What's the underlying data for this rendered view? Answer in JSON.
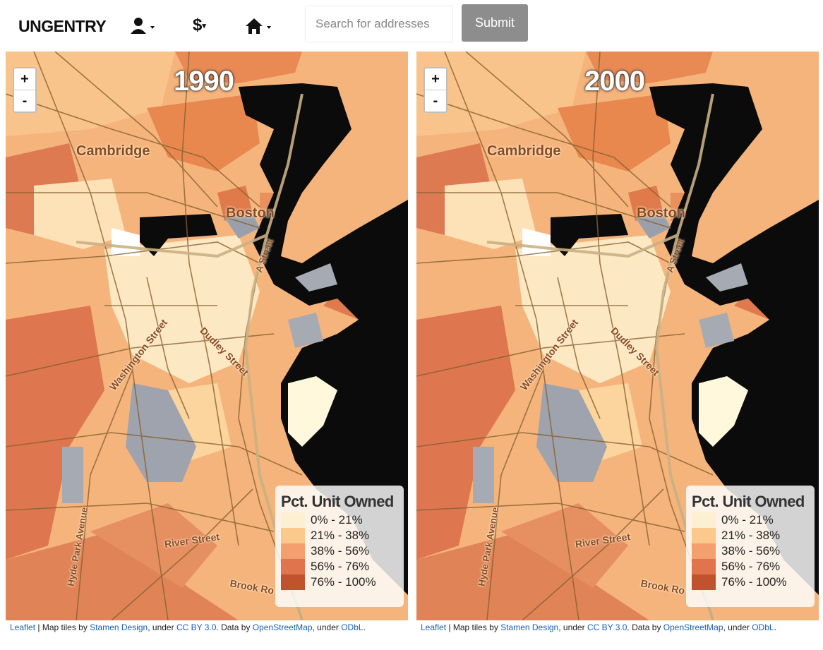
{
  "navbar": {
    "brand": "UNGENTRY",
    "dollar_menu": "$",
    "search_placeholder": "Search for addresses",
    "submit": "Submit"
  },
  "maps": [
    {
      "year": "1990",
      "zoom_in": "+",
      "zoom_out": "-",
      "labels": [
        "Cambridge",
        "Boston",
        "Washington Street",
        "Dudley Street",
        "River Street",
        "Hyde Park Avenue",
        "A Street",
        "Brook Ro"
      ],
      "legend": {
        "title": "Pct. Unit Owned",
        "items": [
          {
            "label": "0% - 21%",
            "color": "#fdf0d2"
          },
          {
            "label": "21% - 38%",
            "color": "#fbc98c"
          },
          {
            "label": "38% - 56%",
            "color": "#f4a06e"
          },
          {
            "label": "56% - 76%",
            "color": "#e0744c"
          },
          {
            "label": "76% - 100%",
            "color": "#c0532d"
          }
        ]
      },
      "attribution": [
        {
          "text": "Leaflet",
          "link": true
        },
        {
          "text": " | Map tiles by ",
          "link": false
        },
        {
          "text": "Stamen Design",
          "link": true
        },
        {
          "text": ", under ",
          "link": false
        },
        {
          "text": "CC BY 3.0",
          "link": true
        },
        {
          "text": ". Data by ",
          "link": false
        },
        {
          "text": "OpenStreetMap",
          "link": true
        },
        {
          "text": ", under ",
          "link": false
        },
        {
          "text": "ODbL",
          "link": true
        },
        {
          "text": ".",
          "link": false
        }
      ]
    },
    {
      "year": "2000",
      "zoom_in": "+",
      "zoom_out": "-",
      "labels": [
        "Cambridge",
        "Boston",
        "Washington Street",
        "Dudley Street",
        "River Street",
        "Hyde Park Avenue",
        "A Street",
        "Brook Ro"
      ],
      "legend": {
        "title": "Pct. Unit Owned",
        "items": [
          {
            "label": "0% - 21%",
            "color": "#fdf0d2"
          },
          {
            "label": "21% - 38%",
            "color": "#fbc98c"
          },
          {
            "label": "38% - 56%",
            "color": "#f4a06e"
          },
          {
            "label": "56% - 76%",
            "color": "#e0744c"
          },
          {
            "label": "76% - 100%",
            "color": "#c0532d"
          }
        ]
      },
      "attribution": [
        {
          "text": "Leaflet",
          "link": true
        },
        {
          "text": " | Map tiles by ",
          "link": false
        },
        {
          "text": "Stamen Design",
          "link": true
        },
        {
          "text": ", under ",
          "link": false
        },
        {
          "text": "CC BY 3.0",
          "link": true
        },
        {
          "text": ". Data by ",
          "link": false
        },
        {
          "text": "OpenStreetMap",
          "link": true
        },
        {
          "text": ", under ",
          "link": false
        },
        {
          "text": "ODbL",
          "link": true
        },
        {
          "text": ".",
          "link": false
        }
      ]
    }
  ]
}
